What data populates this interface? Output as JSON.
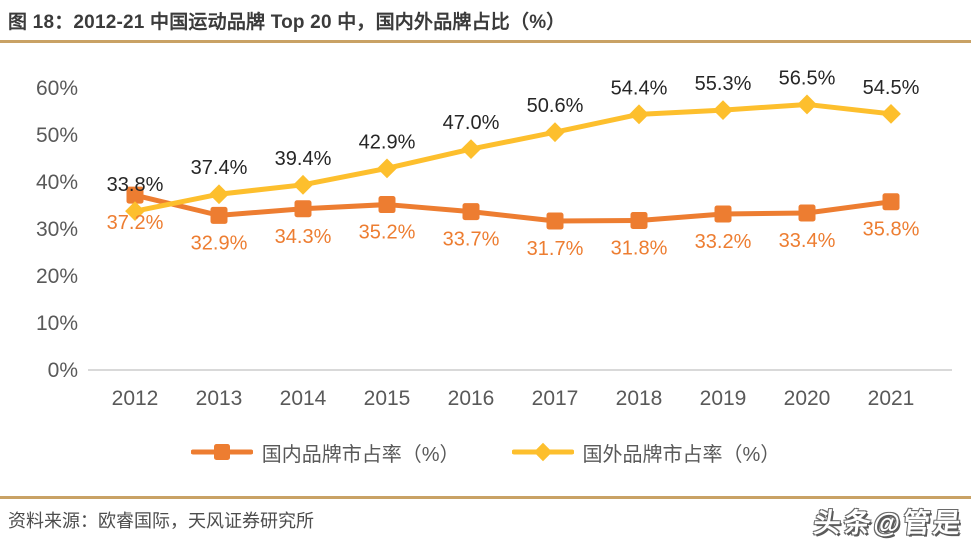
{
  "title": "图 18：2012-21 中国运动品牌 Top 20 中，国内外品牌占比（%）",
  "source": "资料来源：欧睿国际，天风证券研究所",
  "watermark": "头条@管是",
  "colors": {
    "title_text": "#3b3b3b",
    "separator": "#c9a265",
    "axis_line": "#d9d9d9",
    "axis_text": "#595959",
    "domestic_series": "#ed7d31",
    "foreign_series": "#fdbf2d",
    "foreign_label_text": "#262626",
    "domestic_label_text": "#ed7d31",
    "source_text": "#4d4d4d"
  },
  "chart_data": {
    "type": "line",
    "title": "2012-21 中国运动品牌 Top 20 中，国内外品牌占比（%）",
    "categories": [
      "2012",
      "2013",
      "2014",
      "2015",
      "2016",
      "2017",
      "2018",
      "2019",
      "2020",
      "2021"
    ],
    "series": [
      {
        "name": "国内品牌市占率（%）",
        "marker": "square",
        "color": "#ed7d31",
        "label_color": "#ed7d31",
        "label_position": "below",
        "values": [
          37.2,
          32.9,
          34.3,
          35.2,
          33.7,
          31.7,
          31.8,
          33.2,
          33.4,
          35.8
        ]
      },
      {
        "name": "国外品牌市占率（%）",
        "marker": "diamond",
        "color": "#fdbf2d",
        "label_color": "#262626",
        "label_position": "above",
        "values": [
          33.8,
          37.4,
          39.4,
          42.9,
          47.0,
          50.6,
          54.4,
          55.3,
          56.5,
          54.5
        ]
      }
    ],
    "xlabel": "",
    "ylabel": "",
    "ylim": [
      0,
      60
    ],
    "ytick_step": 10,
    "ytick_labels": [
      "0%",
      "10%",
      "20%",
      "30%",
      "40%",
      "50%",
      "60%"
    ],
    "data_label_format": "one-decimal-percent",
    "grid": false,
    "legend_position": "bottom"
  }
}
